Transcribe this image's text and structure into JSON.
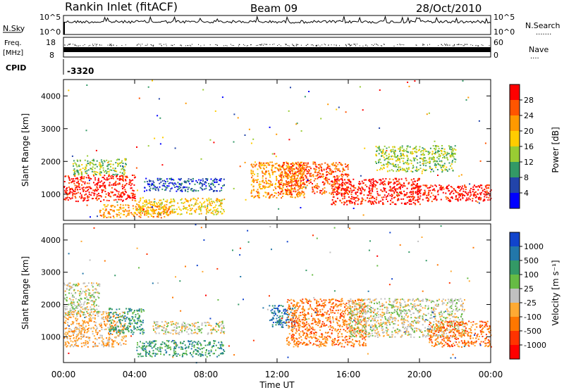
{
  "header": {
    "station": "Rankin Inlet (fitACF)",
    "beam": "Beam 09",
    "date": "28/Oct/2010"
  },
  "top_panels": {
    "nsky": {
      "label": "N.Sky",
      "tick_top": "10^5",
      "tick_bottom": "10^0",
      "right_label": "N.Search",
      "right_tick_top": "10^5",
      "right_tick_bottom": "10^0"
    },
    "freq": {
      "label_line1": "Freq.",
      "label_line2": "[MHz]",
      "tick_top": "18",
      "tick_bottom": "8",
      "right_label": "Nave",
      "right_tick_top": "60",
      "right_tick_bottom": "0"
    },
    "cpid": {
      "label": "CPID",
      "value": "-3320"
    }
  },
  "chart_data": [
    {
      "type": "heatmap",
      "name": "power",
      "ylabel": "Slant Range [km]",
      "xlabel": "Time UT",
      "ylim": [
        200,
        4500
      ],
      "yticks": [
        "1000",
        "2000",
        "3000",
        "4000"
      ],
      "xticks": [
        "00:00",
        "04:00",
        "08:00",
        "12:00",
        "16:00",
        "20:00",
        "00:00"
      ],
      "colorbar": {
        "label": "Power [dB]",
        "ticks": [
          "28",
          "24",
          "20",
          "16",
          "12",
          "8",
          "4"
        ],
        "colors": [
          "#ff0000",
          "#ff5500",
          "#ff9900",
          "#ffcc00",
          "#99cc33",
          "#339966",
          "#2244aa",
          "#0000ff"
        ]
      },
      "regions": [
        {
          "t0": 0.0,
          "t1": 4.0,
          "r0": 800,
          "r1": 1600,
          "level": 0
        },
        {
          "t0": 0.5,
          "t1": 3.5,
          "r0": 1600,
          "r1": 2100,
          "level": 4
        },
        {
          "t0": 2.0,
          "t1": 6.0,
          "r0": 300,
          "r1": 700,
          "level": 2
        },
        {
          "t0": 4.0,
          "t1": 9.0,
          "r0": 400,
          "r1": 900,
          "level": 3
        },
        {
          "t0": 4.5,
          "t1": 9.0,
          "r0": 1100,
          "r1": 1500,
          "level": 6
        },
        {
          "t0": 10.5,
          "t1": 13.5,
          "r0": 900,
          "r1": 2000,
          "level": 2
        },
        {
          "t0": 12.0,
          "t1": 16.0,
          "r0": 1000,
          "r1": 2000,
          "level": 1
        },
        {
          "t0": 15.0,
          "t1": 20.0,
          "r0": 700,
          "r1": 1500,
          "level": 0
        },
        {
          "t0": 19.5,
          "t1": 24.0,
          "r0": 800,
          "r1": 1300,
          "level": 0
        },
        {
          "t0": 17.5,
          "t1": 22.0,
          "r0": 1700,
          "r1": 2500,
          "level": 4
        }
      ]
    },
    {
      "type": "heatmap",
      "name": "velocity",
      "ylabel": "Slant Range [km]",
      "xlabel": "Time UT",
      "ylim": [
        200,
        4500
      ],
      "yticks": [
        "1000",
        "2000",
        "3000",
        "4000"
      ],
      "xticks": [
        "00:00",
        "04:00",
        "08:00",
        "12:00",
        "16:00",
        "20:00",
        "00:00"
      ],
      "colorbar": {
        "label": "Velocity [m s⁻¹]",
        "ticks": [
          "1000",
          "500",
          "100",
          "25",
          "-25",
          "-100",
          "-500",
          "-1000"
        ],
        "colors": [
          "#1144cc",
          "#2277aa",
          "#339966",
          "#66bb44",
          "#c0c0c0",
          "#ffaa33",
          "#ff7700",
          "#ff3300",
          "#ff0000"
        ]
      },
      "regions": [
        {
          "t0": 0.0,
          "t1": 3.5,
          "r0": 700,
          "r1": 1800,
          "level": 5
        },
        {
          "t0": 2.5,
          "t1": 4.5,
          "r0": 1100,
          "r1": 1900,
          "level": 2
        },
        {
          "t0": 0.0,
          "t1": 2.0,
          "r0": 1700,
          "r1": 2700,
          "level": 4
        },
        {
          "t0": 4.0,
          "t1": 9.0,
          "r0": 400,
          "r1": 900,
          "level": 2
        },
        {
          "t0": 5.0,
          "t1": 9.0,
          "r0": 1100,
          "r1": 1500,
          "level": 4
        },
        {
          "t0": 11.5,
          "t1": 13.0,
          "r0": 1300,
          "r1": 2000,
          "level": 1
        },
        {
          "t0": 12.5,
          "t1": 17.0,
          "r0": 700,
          "r1": 2200,
          "level": 6
        },
        {
          "t0": 16.0,
          "t1": 22.5,
          "r0": 1000,
          "r1": 2200,
          "level": 4
        },
        {
          "t0": 20.5,
          "t1": 24.0,
          "r0": 700,
          "r1": 1500,
          "level": 6
        }
      ]
    }
  ]
}
